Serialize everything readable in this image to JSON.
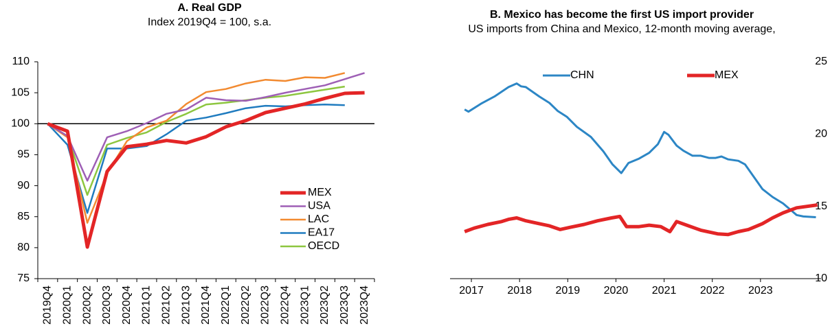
{
  "chart_data": [
    {
      "type": "line",
      "title": "A. Real GDP",
      "subtitle": "Index 2019Q4 = 100, s.a.",
      "categories": [
        "2019Q4",
        "2020Q1",
        "2020Q2",
        "2020Q3",
        "2020Q4",
        "2021Q1",
        "2021Q2",
        "2021Q3",
        "2021Q4",
        "2022Q1",
        "2022Q2",
        "2022Q3",
        "2022Q4",
        "2023Q1",
        "2023Q2",
        "2023Q3",
        "2023Q4"
      ],
      "series": [
        {
          "name": "MEX",
          "color": "#e32526",
          "values": [
            100,
            98.8,
            80.1,
            92.3,
            96.3,
            96.7,
            97.3,
            96.9,
            97.9,
            99.5,
            100.5,
            101.8,
            102.5,
            103.2,
            104.1,
            104.9,
            105.0
          ]
        },
        {
          "name": "USA",
          "color": "#9e5fb5",
          "values": [
            100,
            98.0,
            90.8,
            97.8,
            98.8,
            100.1,
            101.6,
            102.3,
            104.2,
            103.8,
            103.7,
            104.3,
            105.0,
            105.6,
            106.2,
            107.2,
            108.2
          ]
        },
        {
          "name": "LAC",
          "color": "#f28a30",
          "values": [
            100,
            97.8,
            84.0,
            92.0,
            97.2,
            99.4,
            100.5,
            103.2,
            105.1,
            105.6,
            106.5,
            107.1,
            106.9,
            107.5,
            107.4,
            108.2,
            null
          ]
        },
        {
          "name": "EA17",
          "color": "#1f7bbf",
          "values": [
            100,
            96.6,
            85.6,
            96.0,
            96.0,
            96.4,
            98.3,
            100.5,
            101.0,
            101.7,
            102.5,
            102.9,
            102.8,
            103.0,
            103.1,
            103.0,
            null
          ]
        },
        {
          "name": "OECD",
          "color": "#8dc63f",
          "values": [
            100,
            98.0,
            88.5,
            96.6,
            97.7,
            98.6,
            100.3,
            101.6,
            103.1,
            103.4,
            103.8,
            104.2,
            104.5,
            105.0,
            105.5,
            106.0,
            null
          ]
        }
      ],
      "ylim": [
        75,
        110
      ],
      "yticks": [
        75,
        80,
        85,
        90,
        95,
        100,
        105,
        110
      ],
      "refline": 100,
      "legend": "lower right"
    },
    {
      "type": "line",
      "title": "B. Mexico has become the first US import provider",
      "subtitle": "US imports from China and Mexico, 12-month moving average,",
      "series": [
        {
          "name": "CHN",
          "color": "#2c86c5",
          "x": [
            2016.86,
            2016.94,
            2017.2,
            2017.48,
            2017.77,
            2017.94,
            2018.03,
            2018.13,
            2018.41,
            2018.62,
            2018.79,
            2018.98,
            2019.19,
            2019.48,
            2019.74,
            2019.93,
            2020.11,
            2020.26,
            2020.48,
            2020.69,
            2020.87,
            2021.0,
            2021.09,
            2021.26,
            2021.4,
            2021.59,
            2021.76,
            2021.93,
            2022.07,
            2022.19,
            2022.33,
            2022.54,
            2022.68,
            2022.87,
            2023.04,
            2023.25,
            2023.47,
            2023.61,
            2023.75,
            2023.89,
            2024.15
          ],
          "values": [
            21.7,
            21.55,
            22.1,
            22.6,
            23.25,
            23.5,
            23.3,
            23.25,
            22.6,
            22.15,
            21.6,
            21.2,
            20.5,
            19.8,
            18.8,
            17.9,
            17.3,
            18.0,
            18.3,
            18.7,
            19.3,
            20.15,
            19.95,
            19.2,
            18.85,
            18.5,
            18.5,
            18.35,
            18.35,
            18.45,
            18.25,
            18.15,
            17.9,
            17.0,
            16.2,
            15.65,
            15.2,
            14.8,
            14.4,
            14.3,
            14.25
          ]
        },
        {
          "name": "MEX",
          "color": "#e32526",
          "x": [
            2016.86,
            2017.06,
            2017.34,
            2017.63,
            2017.77,
            2017.94,
            2018.13,
            2018.41,
            2018.62,
            2018.84,
            2019.05,
            2019.34,
            2019.62,
            2019.91,
            2020.08,
            2020.22,
            2020.48,
            2020.69,
            2020.93,
            2021.12,
            2021.26,
            2021.47,
            2021.76,
            2022.11,
            2022.33,
            2022.54,
            2022.75,
            2023.04,
            2023.25,
            2023.47,
            2023.75,
            2024.18
          ],
          "values": [
            13.25,
            13.5,
            13.75,
            13.95,
            14.1,
            14.2,
            14.0,
            13.8,
            13.65,
            13.4,
            13.55,
            13.75,
            14.0,
            14.2,
            14.3,
            13.6,
            13.6,
            13.7,
            13.6,
            13.25,
            13.95,
            13.7,
            13.35,
            13.1,
            13.05,
            13.25,
            13.4,
            13.8,
            14.2,
            14.55,
            14.9,
            15.1
          ]
        }
      ],
      "xlim": [
        2016.6,
        2024.3
      ],
      "xticks": [
        2017,
        2018,
        2019,
        2020,
        2021,
        2022,
        2023
      ],
      "ylim": [
        10,
        25
      ],
      "yticks": [
        10,
        15,
        20,
        25
      ],
      "legend": "upper center"
    }
  ]
}
